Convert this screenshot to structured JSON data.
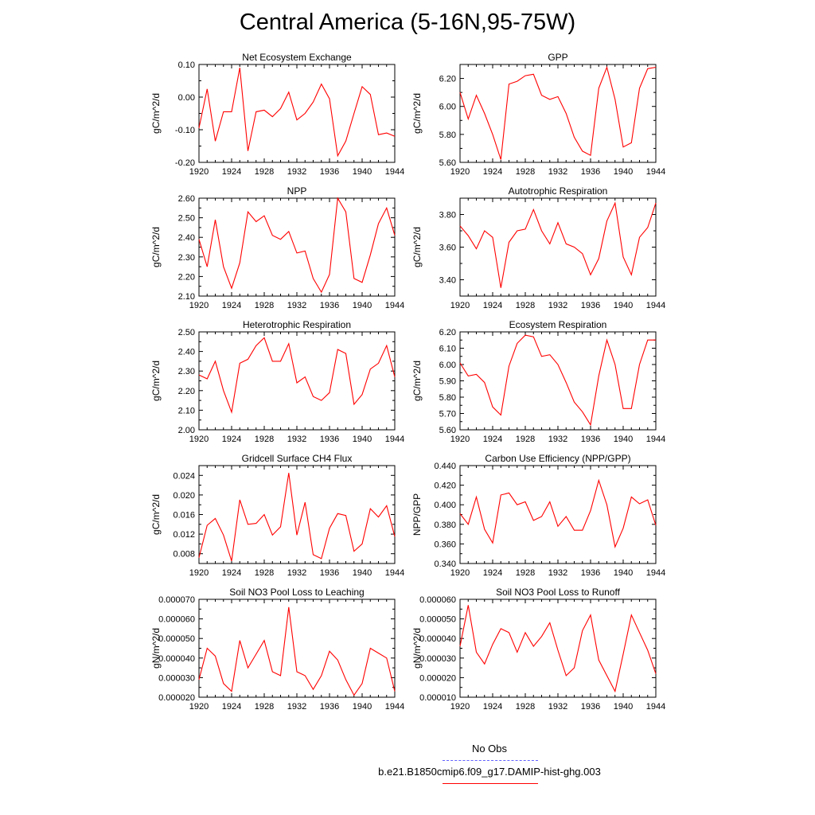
{
  "page": {
    "title": "Central America (5-16N,95-75W)"
  },
  "legend": {
    "obs_label": "No Obs",
    "obs_color": "#6060ff",
    "model_label": "b.e21.B1850cmip6.f09_g17.DAMIP-hist-ghg.003",
    "model_color": "#ff0000"
  },
  "chart_data": [
    {
      "type": "line",
      "title": "Net Ecosystem Exchange",
      "ylabel": "gC/m^2/d",
      "xlim": [
        1920,
        1944
      ],
      "ylim": [
        -0.2,
        0.1
      ],
      "yticks": [
        "-0.20",
        "-0.10",
        "0.00",
        "0.10"
      ],
      "xticks": [
        "1920",
        "1924",
        "1928",
        "1932",
        "1936",
        "1940",
        "1944"
      ],
      "x": [
        1920,
        1921,
        1922,
        1923,
        1924,
        1925,
        1926,
        1927,
        1928,
        1929,
        1930,
        1931,
        1932,
        1933,
        1934,
        1935,
        1936,
        1937,
        1938,
        1939,
        1940,
        1941,
        1942,
        1943,
        1944
      ],
      "series": [
        {
          "color": "#ff0000",
          "values": [
            -0.095,
            0.025,
            -0.135,
            -0.045,
            -0.045,
            0.09,
            -0.165,
            -0.045,
            -0.04,
            -0.06,
            -0.035,
            0.015,
            -0.07,
            -0.05,
            -0.015,
            0.04,
            -0.005,
            -0.18,
            -0.135,
            -0.05,
            0.032,
            0.008,
            -0.115,
            -0.11,
            -0.12
          ]
        }
      ]
    },
    {
      "type": "line",
      "title": "GPP",
      "ylabel": "gC/m^2/d",
      "xlim": [
        1920,
        1944
      ],
      "ylim": [
        5.6,
        6.3
      ],
      "yticks": [
        "5.60",
        "5.80",
        "6.00",
        "6.20"
      ],
      "xticks": [
        "1920",
        "1924",
        "1928",
        "1932",
        "1936",
        "1940",
        "1944"
      ],
      "x": [
        1920,
        1921,
        1922,
        1923,
        1924,
        1925,
        1926,
        1927,
        1928,
        1929,
        1930,
        1931,
        1932,
        1933,
        1934,
        1935,
        1936,
        1937,
        1938,
        1939,
        1940,
        1941,
        1942,
        1943,
        1944
      ],
      "series": [
        {
          "color": "#ff0000",
          "values": [
            6.1,
            5.91,
            6.08,
            5.95,
            5.8,
            5.62,
            6.16,
            6.18,
            6.22,
            6.23,
            6.08,
            6.05,
            6.07,
            5.95,
            5.78,
            5.68,
            5.65,
            6.13,
            6.28,
            6.05,
            5.71,
            5.74,
            6.13,
            6.27,
            6.28
          ]
        }
      ]
    },
    {
      "type": "line",
      "title": "NPP",
      "ylabel": "gC/m^2/d",
      "xlim": [
        1920,
        1944
      ],
      "ylim": [
        2.1,
        2.6
      ],
      "yticks": [
        "2.10",
        "2.20",
        "2.30",
        "2.40",
        "2.50",
        "2.60"
      ],
      "xticks": [
        "1920",
        "1924",
        "1928",
        "1932",
        "1936",
        "1940",
        "1944"
      ],
      "x": [
        1920,
        1921,
        1922,
        1923,
        1924,
        1925,
        1926,
        1927,
        1928,
        1929,
        1930,
        1931,
        1932,
        1933,
        1934,
        1935,
        1936,
        1937,
        1938,
        1939,
        1940,
        1941,
        1942,
        1943,
        1944
      ],
      "series": [
        {
          "color": "#ff0000",
          "values": [
            2.39,
            2.25,
            2.49,
            2.25,
            2.14,
            2.27,
            2.53,
            2.48,
            2.51,
            2.41,
            2.39,
            2.43,
            2.32,
            2.33,
            2.19,
            2.12,
            2.21,
            2.6,
            2.53,
            2.19,
            2.17,
            2.31,
            2.47,
            2.55,
            2.41
          ]
        }
      ]
    },
    {
      "type": "line",
      "title": "Autotrophic Respiration",
      "ylabel": "gC/m^2/d",
      "xlim": [
        1920,
        1944
      ],
      "ylim": [
        3.3,
        3.9
      ],
      "yticks": [
        "3.40",
        "3.60",
        "3.80"
      ],
      "xticks": [
        "1920",
        "1924",
        "1928",
        "1932",
        "1936",
        "1940",
        "1944"
      ],
      "x": [
        1920,
        1921,
        1922,
        1923,
        1924,
        1925,
        1926,
        1927,
        1928,
        1929,
        1930,
        1931,
        1932,
        1933,
        1934,
        1935,
        1936,
        1937,
        1938,
        1939,
        1940,
        1941,
        1942,
        1943,
        1944
      ],
      "series": [
        {
          "color": "#ff0000",
          "values": [
            3.73,
            3.67,
            3.59,
            3.7,
            3.66,
            3.35,
            3.63,
            3.7,
            3.71,
            3.83,
            3.7,
            3.62,
            3.75,
            3.62,
            3.6,
            3.56,
            3.43,
            3.53,
            3.76,
            3.87,
            3.54,
            3.43,
            3.66,
            3.72,
            3.87
          ]
        }
      ]
    },
    {
      "type": "line",
      "title": "Heterotrophic Respiration",
      "ylabel": "gC/m^2/d",
      "xlim": [
        1920,
        1944
      ],
      "ylim": [
        2.0,
        2.5
      ],
      "yticks": [
        "2.00",
        "2.10",
        "2.20",
        "2.30",
        "2.40",
        "2.50"
      ],
      "xticks": [
        "1920",
        "1924",
        "1928",
        "1932",
        "1936",
        "1940",
        "1944"
      ],
      "x": [
        1920,
        1921,
        1922,
        1923,
        1924,
        1925,
        1926,
        1927,
        1928,
        1929,
        1930,
        1931,
        1932,
        1933,
        1934,
        1935,
        1936,
        1937,
        1938,
        1939,
        1940,
        1941,
        1942,
        1943,
        1944
      ],
      "series": [
        {
          "color": "#ff0000",
          "values": [
            2.28,
            2.26,
            2.35,
            2.2,
            2.09,
            2.34,
            2.36,
            2.43,
            2.47,
            2.35,
            2.35,
            2.44,
            2.24,
            2.27,
            2.17,
            2.15,
            2.19,
            2.41,
            2.39,
            2.13,
            2.18,
            2.31,
            2.34,
            2.43,
            2.27
          ]
        }
      ]
    },
    {
      "type": "line",
      "title": "Ecosystem Respiration",
      "ylabel": "gC/m^2/d",
      "xlim": [
        1920,
        1944
      ],
      "ylim": [
        5.6,
        6.2
      ],
      "yticks": [
        "5.60",
        "5.70",
        "5.80",
        "5.90",
        "6.00",
        "6.10",
        "6.20"
      ],
      "xticks": [
        "1920",
        "1924",
        "1928",
        "1932",
        "1936",
        "1940",
        "1944"
      ],
      "x": [
        1920,
        1921,
        1922,
        1923,
        1924,
        1925,
        1926,
        1927,
        1928,
        1929,
        1930,
        1931,
        1932,
        1933,
        1934,
        1935,
        1936,
        1937,
        1938,
        1939,
        1940,
        1941,
        1942,
        1943,
        1944
      ],
      "series": [
        {
          "color": "#ff0000",
          "values": [
            6.01,
            5.93,
            5.94,
            5.89,
            5.74,
            5.69,
            5.99,
            6.13,
            6.18,
            6.17,
            6.05,
            6.06,
            6.0,
            5.89,
            5.77,
            5.71,
            5.63,
            5.93,
            6.15,
            6.0,
            5.73,
            5.73,
            6.0,
            6.15,
            6.15
          ]
        }
      ]
    },
    {
      "type": "line",
      "title": "Gridcell Surface CH4 Flux",
      "ylabel": "gC/m^2/d",
      "xlim": [
        1920,
        1944
      ],
      "ylim": [
        0.006,
        0.026
      ],
      "yticks": [
        "0.008",
        "0.012",
        "0.016",
        "0.020",
        "0.024"
      ],
      "xticks": [
        "1920",
        "1924",
        "1928",
        "1932",
        "1936",
        "1940",
        "1944"
      ],
      "x": [
        1920,
        1921,
        1922,
        1923,
        1924,
        1925,
        1926,
        1927,
        1928,
        1929,
        1930,
        1931,
        1932,
        1933,
        1934,
        1935,
        1936,
        1937,
        1938,
        1939,
        1940,
        1941,
        1942,
        1943,
        1944
      ],
      "series": [
        {
          "color": "#ff0000",
          "values": [
            0.0072,
            0.0138,
            0.0152,
            0.0118,
            0.0065,
            0.019,
            0.014,
            0.0142,
            0.016,
            0.0118,
            0.0135,
            0.0245,
            0.0118,
            0.0185,
            0.0078,
            0.007,
            0.0132,
            0.0162,
            0.0158,
            0.0085,
            0.01,
            0.0172,
            0.0155,
            0.0178,
            0.0115
          ]
        }
      ]
    },
    {
      "type": "line",
      "title": "Carbon Use Efficiency (NPP/GPP)",
      "ylabel": "NPP/GPP",
      "xlim": [
        1920,
        1944
      ],
      "ylim": [
        0.34,
        0.44
      ],
      "yticks": [
        "0.340",
        "0.360",
        "0.380",
        "0.400",
        "0.420",
        "0.440"
      ],
      "xticks": [
        "1920",
        "1924",
        "1928",
        "1932",
        "1936",
        "1940",
        "1944"
      ],
      "x": [
        1920,
        1921,
        1922,
        1923,
        1924,
        1925,
        1926,
        1927,
        1928,
        1929,
        1930,
        1931,
        1932,
        1933,
        1934,
        1935,
        1936,
        1937,
        1938,
        1939,
        1940,
        1941,
        1942,
        1943,
        1944
      ],
      "series": [
        {
          "color": "#ff0000",
          "values": [
            0.391,
            0.38,
            0.408,
            0.375,
            0.361,
            0.41,
            0.412,
            0.4,
            0.403,
            0.384,
            0.388,
            0.403,
            0.378,
            0.388,
            0.374,
            0.374,
            0.394,
            0.425,
            0.4,
            0.357,
            0.376,
            0.408,
            0.401,
            0.405,
            0.379
          ]
        }
      ]
    },
    {
      "type": "line",
      "title": "Soil NO3 Pool Loss to Leaching",
      "ylabel": "gN/m^2/d",
      "xlim": [
        1920,
        1944
      ],
      "ylim": [
        2e-05,
        7e-05
      ],
      "yticks": [
        "0.000020",
        "0.000030",
        "0.000040",
        "0.000050",
        "0.000060",
        "0.000070"
      ],
      "xticks": [
        "1920",
        "1924",
        "1928",
        "1932",
        "1936",
        "1940",
        "1944"
      ],
      "x": [
        1920,
        1921,
        1922,
        1923,
        1924,
        1925,
        1926,
        1927,
        1928,
        1929,
        1930,
        1931,
        1932,
        1933,
        1934,
        1935,
        1936,
        1937,
        1938,
        1939,
        1940,
        1941,
        1942,
        1943,
        1944
      ],
      "series": [
        {
          "color": "#ff0000",
          "values": [
            2.9e-05,
            4.5e-05,
            4.1e-05,
            2.7e-05,
            2.3e-05,
            4.9e-05,
            3.5e-05,
            4.2e-05,
            4.9e-05,
            3.3e-05,
            3.1e-05,
            6.6e-05,
            3.3e-05,
            3.1e-05,
            2.4e-05,
            3.1e-05,
            4.35e-05,
            3.9e-05,
            2.9e-05,
            2.1e-05,
            2.7e-05,
            4.5e-05,
            4.25e-05,
            4e-05,
            2.3e-05
          ]
        }
      ]
    },
    {
      "type": "line",
      "title": "Soil NO3 Pool Loss to Runoff",
      "ylabel": "gN/m^2/d",
      "xlim": [
        1920,
        1944
      ],
      "ylim": [
        1e-05,
        6e-05
      ],
      "yticks": [
        "0.000010",
        "0.000020",
        "0.000030",
        "0.000040",
        "0.000050",
        "0.000060"
      ],
      "xticks": [
        "1920",
        "1924",
        "1928",
        "1932",
        "1936",
        "1940",
        "1944"
      ],
      "x": [
        1920,
        1921,
        1922,
        1923,
        1924,
        1925,
        1926,
        1927,
        1928,
        1929,
        1930,
        1931,
        1932,
        1933,
        1934,
        1935,
        1936,
        1937,
        1938,
        1939,
        1940,
        1941,
        1942,
        1943,
        1944
      ],
      "series": [
        {
          "color": "#ff0000",
          "values": [
            3.6e-05,
            5.7e-05,
            3.3e-05,
            2.7e-05,
            3.7e-05,
            4.5e-05,
            4.3e-05,
            3.3e-05,
            4.3e-05,
            3.6e-05,
            4.1e-05,
            4.8e-05,
            3.4e-05,
            2.1e-05,
            2.5e-05,
            4.4e-05,
            5.2e-05,
            2.9e-05,
            2.1e-05,
            1.3e-05,
            3.2e-05,
            5.2e-05,
            4.3e-05,
            3.4e-05,
            2.2e-05
          ]
        }
      ]
    }
  ]
}
